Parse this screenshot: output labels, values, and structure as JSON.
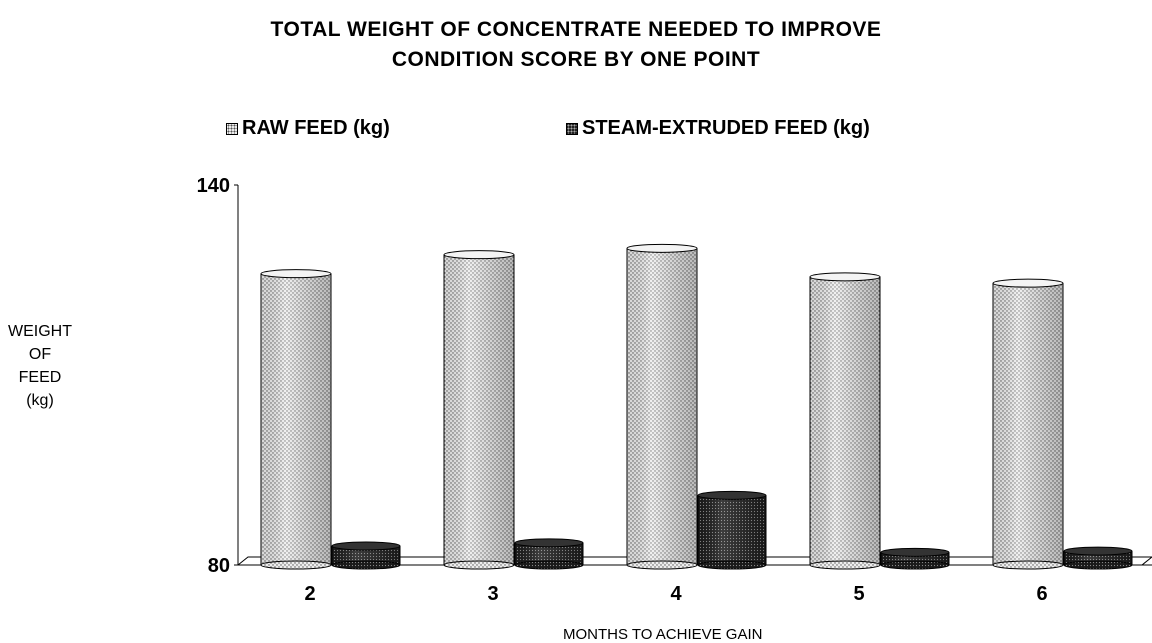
{
  "chart_data": {
    "type": "bar",
    "title_line1": "TOTAL WEIGHT OF CONCENTRATE NEEDED TO IMPROVE",
    "title_line2": "CONDITION SCORE BY ONE POINT",
    "xlabel": "MONTHS TO ACHIEVE GAIN",
    "ylabel_lines": [
      "WEIGHT",
      "OF",
      "FEED",
      "(kg)"
    ],
    "ylim": [
      80,
      140
    ],
    "y_ticks": [
      "140",
      "80"
    ],
    "categories": [
      "2",
      "3",
      "4",
      "5",
      "6"
    ],
    "series": [
      {
        "name": "RAW FEED (kg)",
        "values": [
          126,
          129,
          130,
          125.5,
          124.5
        ],
        "color": "#e8e8e8"
      },
      {
        "name": "STEAM-EXTRUDED FEED (kg)",
        "values": [
          83,
          83.5,
          91,
          82,
          82.2
        ],
        "color": "#1e1e1e"
      }
    ],
    "legend_position": "top",
    "grid": false
  }
}
